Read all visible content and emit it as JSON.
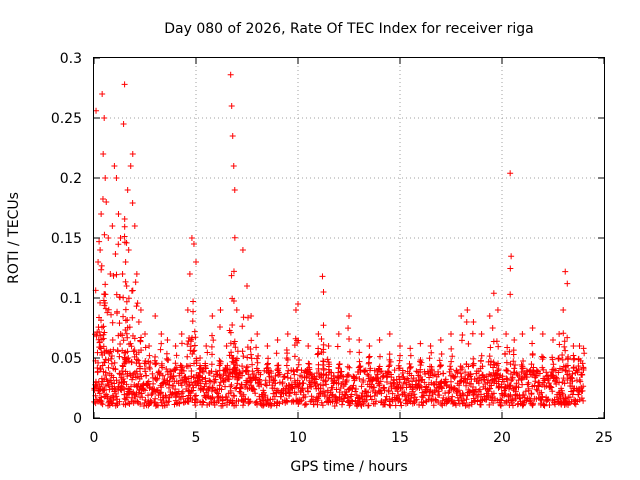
{
  "chart_data": {
    "type": "scatter",
    "title": "Day 080 of 2026, Rate Of TEC Index for receiver riga",
    "xlabel": "GPS time / hours",
    "ylabel": "ROTI / TECUs",
    "xlim": [
      0,
      25
    ],
    "ylim": [
      0,
      0.3
    ],
    "x_ticks": [
      0,
      5,
      10,
      15,
      20,
      25
    ],
    "y_ticks": [
      0,
      0.05,
      0.1,
      0.15,
      0.2,
      0.25,
      0.3
    ],
    "x_tick_labels": [
      "0",
      "5",
      "10",
      "15",
      "20",
      "25"
    ],
    "y_tick_labels": [
      "0",
      "0.05",
      "0.1",
      "0.15",
      "0.2",
      "0.25",
      "0.3"
    ],
    "grid": true,
    "marker": "+",
    "color": "#ff0000",
    "series": [
      {
        "name": "ROTI",
        "x": [
          0.1,
          0.2,
          0.25,
          0.3,
          0.35,
          0.4,
          0.45,
          0.5,
          0.55,
          0.6,
          0.7,
          0.8,
          0.9,
          1.0,
          1.1,
          1.2,
          1.3,
          1.4,
          1.45,
          1.5,
          1.55,
          1.6,
          1.65,
          1.7,
          1.8,
          1.9,
          2.0,
          2.1,
          2.2,
          2.3,
          2.5,
          2.7,
          3.0,
          3.3,
          3.6,
          4.0,
          4.3,
          4.6,
          4.7,
          4.8,
          4.9,
          5.0,
          5.2,
          5.5,
          5.8,
          6.2,
          6.5,
          6.7,
          6.75,
          6.8,
          6.85,
          6.9,
          7.0,
          7.3,
          7.5,
          7.7,
          8.0,
          8.5,
          9.0,
          9.5,
          9.9,
          10.0,
          10.5,
          11.0,
          11.2,
          11.25,
          11.5,
          12.0,
          12.5,
          13.0,
          13.5,
          14.0,
          14.5,
          15.0,
          15.5,
          16.0,
          16.5,
          17.0,
          17.5,
          18.0,
          18.3,
          18.6,
          19.0,
          19.4,
          19.6,
          19.8,
          20.2,
          20.4,
          20.6,
          21.0,
          21.5,
          22.0,
          22.5,
          22.8,
          23.0,
          23.1,
          23.2,
          23.5,
          23.8,
          24.0
        ],
        "y": [
          0.256,
          0.13,
          0.147,
          0.14,
          0.17,
          0.27,
          0.22,
          0.25,
          0.2,
          0.18,
          0.15,
          0.12,
          0.16,
          0.21,
          0.2,
          0.17,
          0.15,
          0.12,
          0.245,
          0.278,
          0.13,
          0.11,
          0.19,
          0.14,
          0.21,
          0.22,
          0.16,
          0.12,
          0.08,
          0.09,
          0.07,
          0.06,
          0.085,
          0.07,
          0.065,
          0.06,
          0.07,
          0.09,
          0.12,
          0.15,
          0.145,
          0.13,
          0.05,
          0.06,
          0.085,
          0.09,
          0.06,
          0.286,
          0.26,
          0.235,
          0.21,
          0.19,
          0.09,
          0.14,
          0.11,
          0.085,
          0.07,
          0.06,
          0.065,
          0.07,
          0.09,
          0.095,
          0.06,
          0.07,
          0.118,
          0.105,
          0.06,
          0.07,
          0.085,
          0.065,
          0.06,
          0.065,
          0.07,
          0.06,
          0.058,
          0.062,
          0.06,
          0.065,
          0.07,
          0.085,
          0.09,
          0.08,
          0.07,
          0.085,
          0.104,
          0.09,
          0.07,
          0.204,
          0.065,
          0.07,
          0.075,
          0.07,
          0.065,
          0.07,
          0.09,
          0.122,
          0.112,
          0.06,
          0.06,
          0.058
        ],
        "baseline_min": 0.01,
        "baseline_max": 0.04
      }
    ]
  }
}
